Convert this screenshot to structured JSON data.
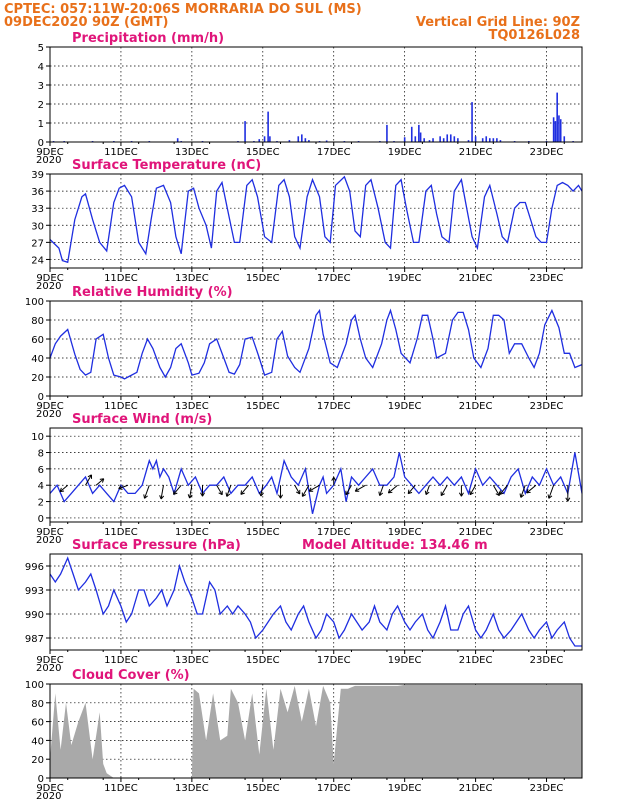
{
  "header": {
    "line1_left": "CPTEC:   057:11W-20:06S   MORRARIA DO SUL (MS)",
    "line2_left": "09DEC2020 90Z (GMT)",
    "line1_right": "Vertical Grid Line: 90Z",
    "line2_right": "TQ0126L028"
  },
  "colors": {
    "header": "#e8701a",
    "title": "#e0157a",
    "series": "#1f2ee0",
    "cloud": "#a9a9a9"
  },
  "x_axis": {
    "tick_labels": [
      "9DEC",
      "11DEC",
      "13DEC",
      "15DEC",
      "17DEC",
      "19DEC",
      "21DEC",
      "23DEC"
    ],
    "tick_days": [
      0,
      2,
      4,
      6,
      8,
      10,
      12,
      14
    ],
    "range_days": [
      0,
      15
    ],
    "year_stub": "2020"
  },
  "chart_data": [
    {
      "id": "precip",
      "type": "bar",
      "title": "Precipitation (mm/h)",
      "ylim": [
        0,
        5
      ],
      "yticks": [
        0,
        1,
        2,
        3,
        4,
        5
      ],
      "grid": "dotted",
      "x_unit": "days since 09DEC 90Z",
      "points": [
        [
          0.1,
          0.05
        ],
        [
          0.4,
          0.05
        ],
        [
          1.2,
          0.05
        ],
        [
          1.8,
          0.05
        ],
        [
          2.3,
          0.05
        ],
        [
          2.8,
          0.05
        ],
        [
          3.6,
          0.2
        ],
        [
          3.7,
          0.05
        ],
        [
          4.3,
          0.05
        ],
        [
          5.3,
          0.05
        ],
        [
          5.5,
          1.1
        ],
        [
          5.75,
          0.05
        ],
        [
          5.9,
          0.15
        ],
        [
          6.05,
          0.3
        ],
        [
          6.15,
          1.6
        ],
        [
          6.2,
          0.3
        ],
        [
          6.4,
          0.05
        ],
        [
          6.75,
          0.1
        ],
        [
          7.0,
          0.3
        ],
        [
          7.1,
          0.4
        ],
        [
          7.2,
          0.2
        ],
        [
          7.3,
          0.1
        ],
        [
          7.6,
          0.05
        ],
        [
          7.8,
          0.08
        ],
        [
          8.3,
          0.05
        ],
        [
          8.7,
          0.05
        ],
        [
          9.3,
          0.05
        ],
        [
          9.5,
          0.9
        ],
        [
          9.7,
          0.05
        ],
        [
          10.0,
          0.25
        ],
        [
          10.2,
          0.8
        ],
        [
          10.3,
          0.3
        ],
        [
          10.4,
          0.9
        ],
        [
          10.45,
          0.5
        ],
        [
          10.55,
          0.2
        ],
        [
          10.7,
          0.1
        ],
        [
          10.8,
          0.2
        ],
        [
          11.0,
          0.3
        ],
        [
          11.1,
          0.2
        ],
        [
          11.2,
          0.4
        ],
        [
          11.3,
          0.4
        ],
        [
          11.4,
          0.3
        ],
        [
          11.5,
          0.2
        ],
        [
          11.8,
          0.1
        ],
        [
          11.9,
          2.1
        ],
        [
          12.0,
          0.3
        ],
        [
          12.2,
          0.2
        ],
        [
          12.3,
          0.3
        ],
        [
          12.4,
          0.2
        ],
        [
          12.5,
          0.2
        ],
        [
          12.6,
          0.2
        ],
        [
          12.7,
          0.1
        ],
        [
          13.1,
          0.05
        ],
        [
          13.5,
          0.05
        ],
        [
          14.0,
          0.05
        ],
        [
          14.2,
          1.3
        ],
        [
          14.25,
          1.1
        ],
        [
          14.3,
          2.6
        ],
        [
          14.35,
          1.4
        ],
        [
          14.4,
          1.2
        ],
        [
          14.5,
          0.3
        ],
        [
          14.75,
          0.05
        ]
      ]
    },
    {
      "id": "temp",
      "type": "line",
      "title": "Surface Temperature (nC)",
      "ylim": [
        22.5,
        39
      ],
      "yticks": [
        24,
        27,
        30,
        33,
        36,
        39
      ],
      "grid": "dotted",
      "x": [
        0,
        0.25,
        0.35,
        0.5,
        0.7,
        0.9,
        1.0,
        1.2,
        1.4,
        1.6,
        1.8,
        1.95,
        2.1,
        2.3,
        2.5,
        2.7,
        2.85,
        3.0,
        3.2,
        3.4,
        3.55,
        3.7,
        3.9,
        4.05,
        4.2,
        4.4,
        4.55,
        4.7,
        4.85,
        5.0,
        5.2,
        5.35,
        5.55,
        5.7,
        5.85,
        6.05,
        6.25,
        6.45,
        6.6,
        6.75,
        6.9,
        7.05,
        7.25,
        7.4,
        7.6,
        7.75,
        7.9,
        8.05,
        8.3,
        8.45,
        8.6,
        8.75,
        8.9,
        9.05,
        9.25,
        9.45,
        9.6,
        9.75,
        9.9,
        10.05,
        10.25,
        10.4,
        10.6,
        10.75,
        10.9,
        11.05,
        11.25,
        11.4,
        11.6,
        11.75,
        11.9,
        12.05,
        12.25,
        12.4,
        12.6,
        12.75,
        12.9,
        13.1,
        13.25,
        13.4,
        13.55,
        13.7,
        13.85,
        14.0,
        14.15,
        14.3,
        14.45,
        14.6,
        14.75,
        14.9,
        15.0
      ],
      "values": [
        27.5,
        26,
        23.8,
        23.5,
        31,
        35,
        35.5,
        31,
        27,
        25.5,
        34,
        36.5,
        37,
        35,
        27,
        25,
        31,
        36.5,
        37,
        34,
        28,
        25,
        36,
        36.5,
        33,
        30,
        26,
        36,
        37.5,
        33,
        27,
        27,
        37,
        38,
        35,
        28,
        27,
        37,
        38,
        35,
        28,
        26,
        35,
        38,
        35,
        28,
        27,
        37,
        38.5,
        36,
        29,
        28,
        37,
        38,
        33,
        27,
        26,
        37,
        38,
        33,
        27,
        27,
        36,
        37,
        32,
        28,
        27,
        36,
        38,
        33,
        28,
        26,
        35,
        37,
        32,
        28,
        27,
        33,
        34,
        34,
        31,
        28,
        27,
        27,
        33,
        37,
        37.5,
        37,
        36,
        37,
        36
      ]
    },
    {
      "id": "rh",
      "type": "line",
      "title": "Relative Humidity (%)",
      "ylim": [
        0,
        100
      ],
      "yticks": [
        0,
        20,
        40,
        60,
        80,
        100
      ],
      "grid": "dotted",
      "x": [
        0,
        0.15,
        0.3,
        0.5,
        0.7,
        0.85,
        1.0,
        1.15,
        1.3,
        1.5,
        1.65,
        1.8,
        2.0,
        2.1,
        2.2,
        2.45,
        2.6,
        2.75,
        2.9,
        3.1,
        3.25,
        3.4,
        3.55,
        3.7,
        3.9,
        4.0,
        4.2,
        4.35,
        4.5,
        4.7,
        4.9,
        5.05,
        5.2,
        5.35,
        5.5,
        5.7,
        5.9,
        6.05,
        6.25,
        6.4,
        6.55,
        6.7,
        6.9,
        7.05,
        7.3,
        7.5,
        7.6,
        7.7,
        7.9,
        8.1,
        8.35,
        8.5,
        8.6,
        8.75,
        8.9,
        9.1,
        9.35,
        9.5,
        9.6,
        9.75,
        9.9,
        10.15,
        10.35,
        10.5,
        10.65,
        10.8,
        10.9,
        11.15,
        11.35,
        11.5,
        11.65,
        11.8,
        11.95,
        12.15,
        12.35,
        12.5,
        12.65,
        12.8,
        12.95,
        13.1,
        13.3,
        13.5,
        13.65,
        13.8,
        13.95,
        14.15,
        14.35,
        14.5,
        14.65,
        14.8,
        15.0
      ],
      "values": [
        40,
        55,
        63,
        70,
        44,
        28,
        22,
        25,
        60,
        65,
        40,
        22,
        20,
        18,
        20,
        25,
        45,
        60,
        50,
        30,
        20,
        30,
        50,
        55,
        35,
        22,
        24,
        35,
        55,
        60,
        40,
        25,
        23,
        33,
        60,
        62,
        40,
        22,
        25,
        60,
        68,
        42,
        30,
        25,
        50,
        85,
        90,
        65,
        35,
        30,
        55,
        80,
        85,
        60,
        40,
        30,
        55,
        80,
        90,
        70,
        45,
        35,
        60,
        85,
        85,
        60,
        40,
        45,
        80,
        88,
        88,
        70,
        40,
        30,
        50,
        85,
        85,
        80,
        45,
        55,
        55,
        40,
        30,
        45,
        75,
        90,
        72,
        45,
        45,
        30,
        33
      ]
    },
    {
      "id": "wind",
      "type": "line",
      "title": "Surface Wind (m/s)",
      "ylim": [
        -0.5,
        11
      ],
      "yticks": [
        0,
        2,
        4,
        6,
        8,
        10
      ],
      "grid": "dotted",
      "x": [
        0,
        0.2,
        0.4,
        0.6,
        0.8,
        1.0,
        1.2,
        1.4,
        1.6,
        1.8,
        2.0,
        2.2,
        2.4,
        2.6,
        2.8,
        2.9,
        3.0,
        3.1,
        3.2,
        3.35,
        3.5,
        3.7,
        3.9,
        4.1,
        4.3,
        4.5,
        4.7,
        4.9,
        5.1,
        5.3,
        5.5,
        5.7,
        5.9,
        6.1,
        6.25,
        6.4,
        6.6,
        6.8,
        7.0,
        7.2,
        7.4,
        7.6,
        7.7,
        7.8,
        8.0,
        8.2,
        8.35,
        8.5,
        8.7,
        8.9,
        9.1,
        9.3,
        9.5,
        9.7,
        9.85,
        10.0,
        10.2,
        10.4,
        10.6,
        10.8,
        11.0,
        11.2,
        11.4,
        11.6,
        11.8,
        12.0,
        12.2,
        12.4,
        12.6,
        12.8,
        13.0,
        13.2,
        13.4,
        13.6,
        13.8,
        14.0,
        14.2,
        14.4,
        14.6,
        14.8,
        15.0
      ],
      "values": [
        3,
        4,
        2,
        3,
        4,
        5,
        3,
        4,
        3,
        2,
        4,
        3,
        3,
        4,
        7,
        6,
        7,
        5,
        6,
        5,
        3,
        6,
        4,
        5,
        3,
        4,
        4,
        5,
        3,
        4,
        4,
        5,
        3,
        4,
        5,
        3,
        7,
        5,
        4,
        6,
        0.5,
        4,
        5,
        3,
        4,
        6,
        2,
        5,
        4,
        5,
        6,
        4,
        4,
        5,
        8,
        5,
        4,
        3,
        4,
        5,
        4,
        5,
        4,
        5,
        3,
        6,
        4,
        5,
        4,
        3,
        5,
        6,
        3,
        5,
        4,
        6,
        4,
        5,
        3,
        8,
        3
      ]
    },
    {
      "id": "press",
      "type": "line",
      "title": "Surface Pressure (hPa)",
      "annotation": "Model Altitude: 134.46 m",
      "ylim": [
        985.5,
        997.5
      ],
      "yticks": [
        987,
        990,
        993,
        996
      ],
      "grid": "dotted",
      "x": [
        0,
        0.15,
        0.3,
        0.5,
        0.65,
        0.8,
        1.0,
        1.15,
        1.3,
        1.5,
        1.65,
        1.8,
        2.0,
        2.15,
        2.3,
        2.5,
        2.65,
        2.8,
        3.0,
        3.15,
        3.3,
        3.5,
        3.65,
        3.8,
        4.0,
        4.15,
        4.3,
        4.5,
        4.65,
        4.8,
        5.0,
        5.15,
        5.3,
        5.5,
        5.65,
        5.8,
        6.0,
        6.15,
        6.3,
        6.5,
        6.65,
        6.8,
        7.0,
        7.15,
        7.3,
        7.5,
        7.65,
        7.8,
        8.0,
        8.15,
        8.3,
        8.5,
        8.65,
        8.8,
        9.0,
        9.15,
        9.3,
        9.5,
        9.65,
        9.8,
        10.0,
        10.15,
        10.3,
        10.5,
        10.65,
        10.8,
        11.0,
        11.15,
        11.3,
        11.5,
        11.65,
        11.8,
        12.0,
        12.15,
        12.3,
        12.5,
        12.65,
        12.8,
        13.0,
        13.15,
        13.3,
        13.5,
        13.65,
        13.8,
        14.0,
        14.15,
        14.3,
        14.5,
        14.65,
        14.8,
        15.0
      ],
      "values": [
        995,
        994,
        995,
        997,
        995,
        993,
        994,
        995,
        993,
        990,
        991,
        993,
        991,
        989,
        990,
        993,
        993,
        991,
        992,
        993,
        991,
        993,
        996,
        994,
        992,
        990,
        990,
        994,
        993,
        990,
        991,
        990,
        991,
        990,
        989,
        987,
        988,
        989,
        990,
        991,
        989,
        988,
        990,
        991,
        989,
        987,
        988,
        990,
        989,
        987,
        988,
        990,
        989,
        988,
        989,
        991,
        989,
        988,
        990,
        991,
        989,
        988,
        989,
        990,
        988,
        987,
        989,
        991,
        988,
        988,
        990,
        991,
        988,
        987,
        988,
        990,
        988,
        987,
        988,
        989,
        990,
        988,
        987,
        988,
        989,
        987,
        988,
        989,
        987,
        986,
        986
      ]
    },
    {
      "id": "cloud",
      "type": "area",
      "title": "Cloud Cover (%)",
      "ylim": [
        0,
        100
      ],
      "yticks": [
        0,
        20,
        40,
        60,
        80,
        100
      ],
      "grid": "dotted",
      "x": [
        0,
        0.15,
        0.3,
        0.45,
        0.6,
        0.8,
        1.0,
        1.2,
        1.4,
        1.5,
        1.6,
        1.8,
        2.0,
        2.2,
        2.4,
        2.6,
        2.8,
        3.0,
        3.2,
        3.3,
        3.4,
        3.5,
        3.6,
        3.8,
        4.0,
        4.05,
        4.2,
        4.4,
        4.6,
        4.8,
        5.0,
        5.1,
        5.3,
        5.5,
        5.7,
        5.9,
        6.1,
        6.3,
        6.5,
        6.7,
        6.9,
        7.1,
        7.3,
        7.5,
        7.7,
        7.9,
        8.0,
        8.2,
        8.4,
        8.6,
        8.8,
        9.0,
        9.2,
        9.4,
        9.6,
        9.8,
        10.0,
        10.5,
        11.0,
        11.5,
        12.0,
        12.5,
        13.0,
        13.5,
        14.0,
        14.5,
        15.0
      ],
      "values": [
        20,
        90,
        30,
        80,
        35,
        60,
        80,
        20,
        70,
        15,
        5,
        0,
        0,
        0,
        0,
        0,
        0,
        0,
        0,
        0,
        0,
        0,
        0,
        0,
        0,
        95,
        90,
        40,
        90,
        40,
        45,
        95,
        80,
        40,
        90,
        25,
        95,
        30,
        95,
        70,
        98,
        60,
        95,
        55,
        98,
        80,
        15,
        95,
        95,
        98,
        98,
        98,
        98,
        98,
        98,
        98,
        99,
        99,
        99,
        99,
        99,
        99,
        99,
        99,
        99,
        99,
        99
      ]
    }
  ],
  "wind_arrows": {
    "x": [
      0.5,
      1.0,
      1.3,
      2.2,
      2.8,
      3.2,
      3.7,
      4.0,
      4.3,
      4.7,
      5.1,
      5.6,
      6.0,
      6.5,
      6.9,
      7.3,
      7.6,
      8.0,
      8.5,
      8.9,
      9.4,
      9.8,
      10.3,
      10.7,
      11.2,
      11.6,
      12.0,
      12.5,
      12.9,
      13.4,
      13.7,
      14.2,
      14.6
    ],
    "angle_deg": [
      220,
      60,
      40,
      200,
      250,
      260,
      230,
      260,
      270,
      300,
      250,
      230,
      260,
      270,
      300,
      240,
      210,
      90,
      240,
      210,
      250,
      220,
      230,
      250,
      240,
      270,
      240,
      300,
      230,
      250,
      220,
      250,
      270
    ],
    "len": [
      10,
      12,
      10,
      10,
      14,
      14,
      12,
      13,
      11,
      11,
      12,
      12,
      11,
      13,
      10,
      13,
      12,
      8,
      11,
      12,
      11,
      12,
      11,
      10,
      12,
      11,
      11,
      12,
      12,
      13,
      12,
      14,
      16
    ]
  }
}
